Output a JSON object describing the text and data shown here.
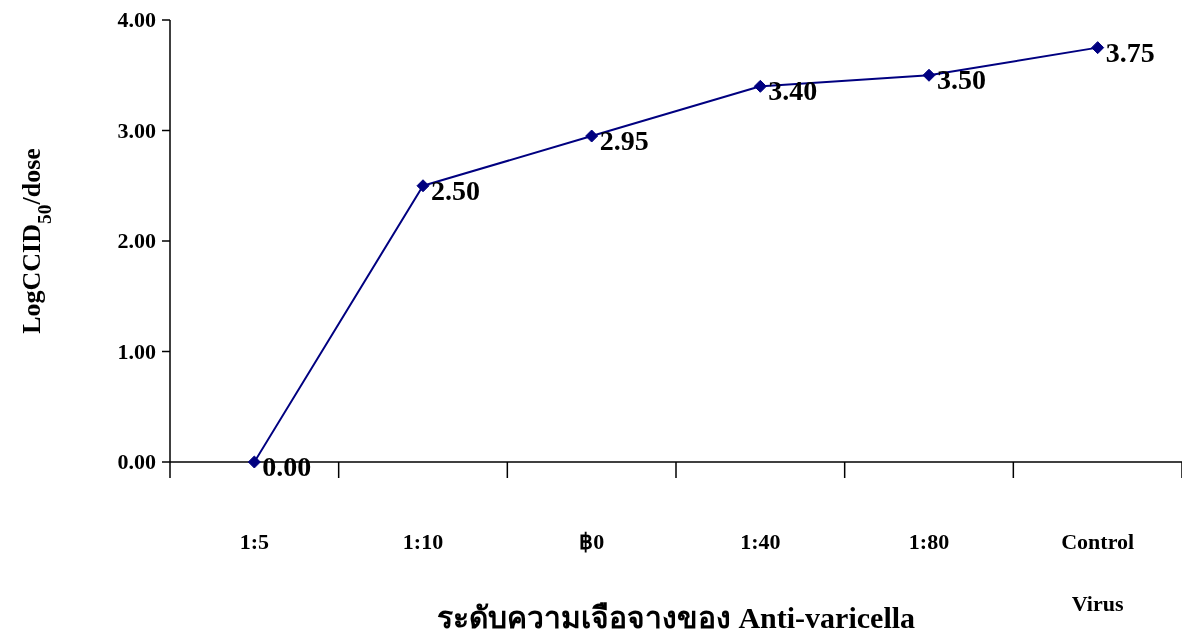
{
  "chart_data": {
    "type": "line",
    "xlabel": "ระดับความเจือจางของ Anti-varicella",
    "ylabel": "LogCCID$_{50}$/dose",
    "categories": [
      "1:5",
      "1:10",
      "฿0",
      "1:40",
      "1:80",
      "Control Virus"
    ],
    "values": [
      0.0,
      2.5,
      2.95,
      3.4,
      3.5,
      3.75
    ],
    "value_labels": [
      "0.00",
      "2.50",
      "2.95",
      "3.40",
      "3.50",
      "3.75"
    ],
    "color": "#000080",
    "marker": "diamond",
    "ylim": [
      0,
      4
    ],
    "yticks": [
      {
        "value": 0,
        "label": "0.00"
      },
      {
        "value": 1,
        "label": "1.00"
      },
      {
        "value": 2,
        "label": "2.00"
      },
      {
        "value": 3,
        "label": "3.00"
      },
      {
        "value": 4,
        "label": "4.00"
      }
    ]
  }
}
